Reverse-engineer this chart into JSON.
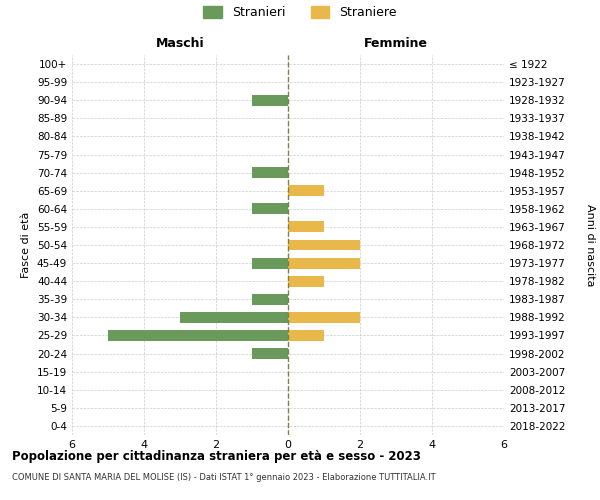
{
  "age_groups": [
    "0-4",
    "5-9",
    "10-14",
    "15-19",
    "20-24",
    "25-29",
    "30-34",
    "35-39",
    "40-44",
    "45-49",
    "50-54",
    "55-59",
    "60-64",
    "65-69",
    "70-74",
    "75-79",
    "80-84",
    "85-89",
    "90-94",
    "95-99",
    "100+"
  ],
  "birth_years": [
    "2018-2022",
    "2013-2017",
    "2008-2012",
    "2003-2007",
    "1998-2002",
    "1993-1997",
    "1988-1992",
    "1983-1987",
    "1978-1982",
    "1973-1977",
    "1968-1972",
    "1963-1967",
    "1958-1962",
    "1953-1957",
    "1948-1952",
    "1943-1947",
    "1938-1942",
    "1933-1937",
    "1928-1932",
    "1923-1927",
    "≤ 1922"
  ],
  "maschi": [
    0,
    0,
    0,
    0,
    1,
    5,
    3,
    1,
    0,
    1,
    0,
    0,
    1,
    0,
    1,
    0,
    0,
    0,
    1,
    0,
    0
  ],
  "femmine": [
    0,
    0,
    0,
    0,
    0,
    1,
    2,
    0,
    1,
    2,
    2,
    1,
    0,
    1,
    0,
    0,
    0,
    0,
    0,
    0,
    0
  ],
  "color_maschi": "#6a9a5b",
  "color_femmine": "#e8b84b",
  "title": "Popolazione per cittadinanza straniera per età e sesso - 2023",
  "subtitle": "COMUNE DI SANTA MARIA DEL MOLISE (IS) - Dati ISTAT 1° gennaio 2023 - Elaborazione TUTTITALIA.IT",
  "legend_maschi": "Stranieri",
  "legend_femmine": "Straniere",
  "header_left": "Maschi",
  "header_right": "Femmine",
  "ylabel_left": "Fasce di età",
  "ylabel_right": "Anni di nascita",
  "xlim": 6,
  "background_color": "#ffffff",
  "grid_color": "#cccccc"
}
